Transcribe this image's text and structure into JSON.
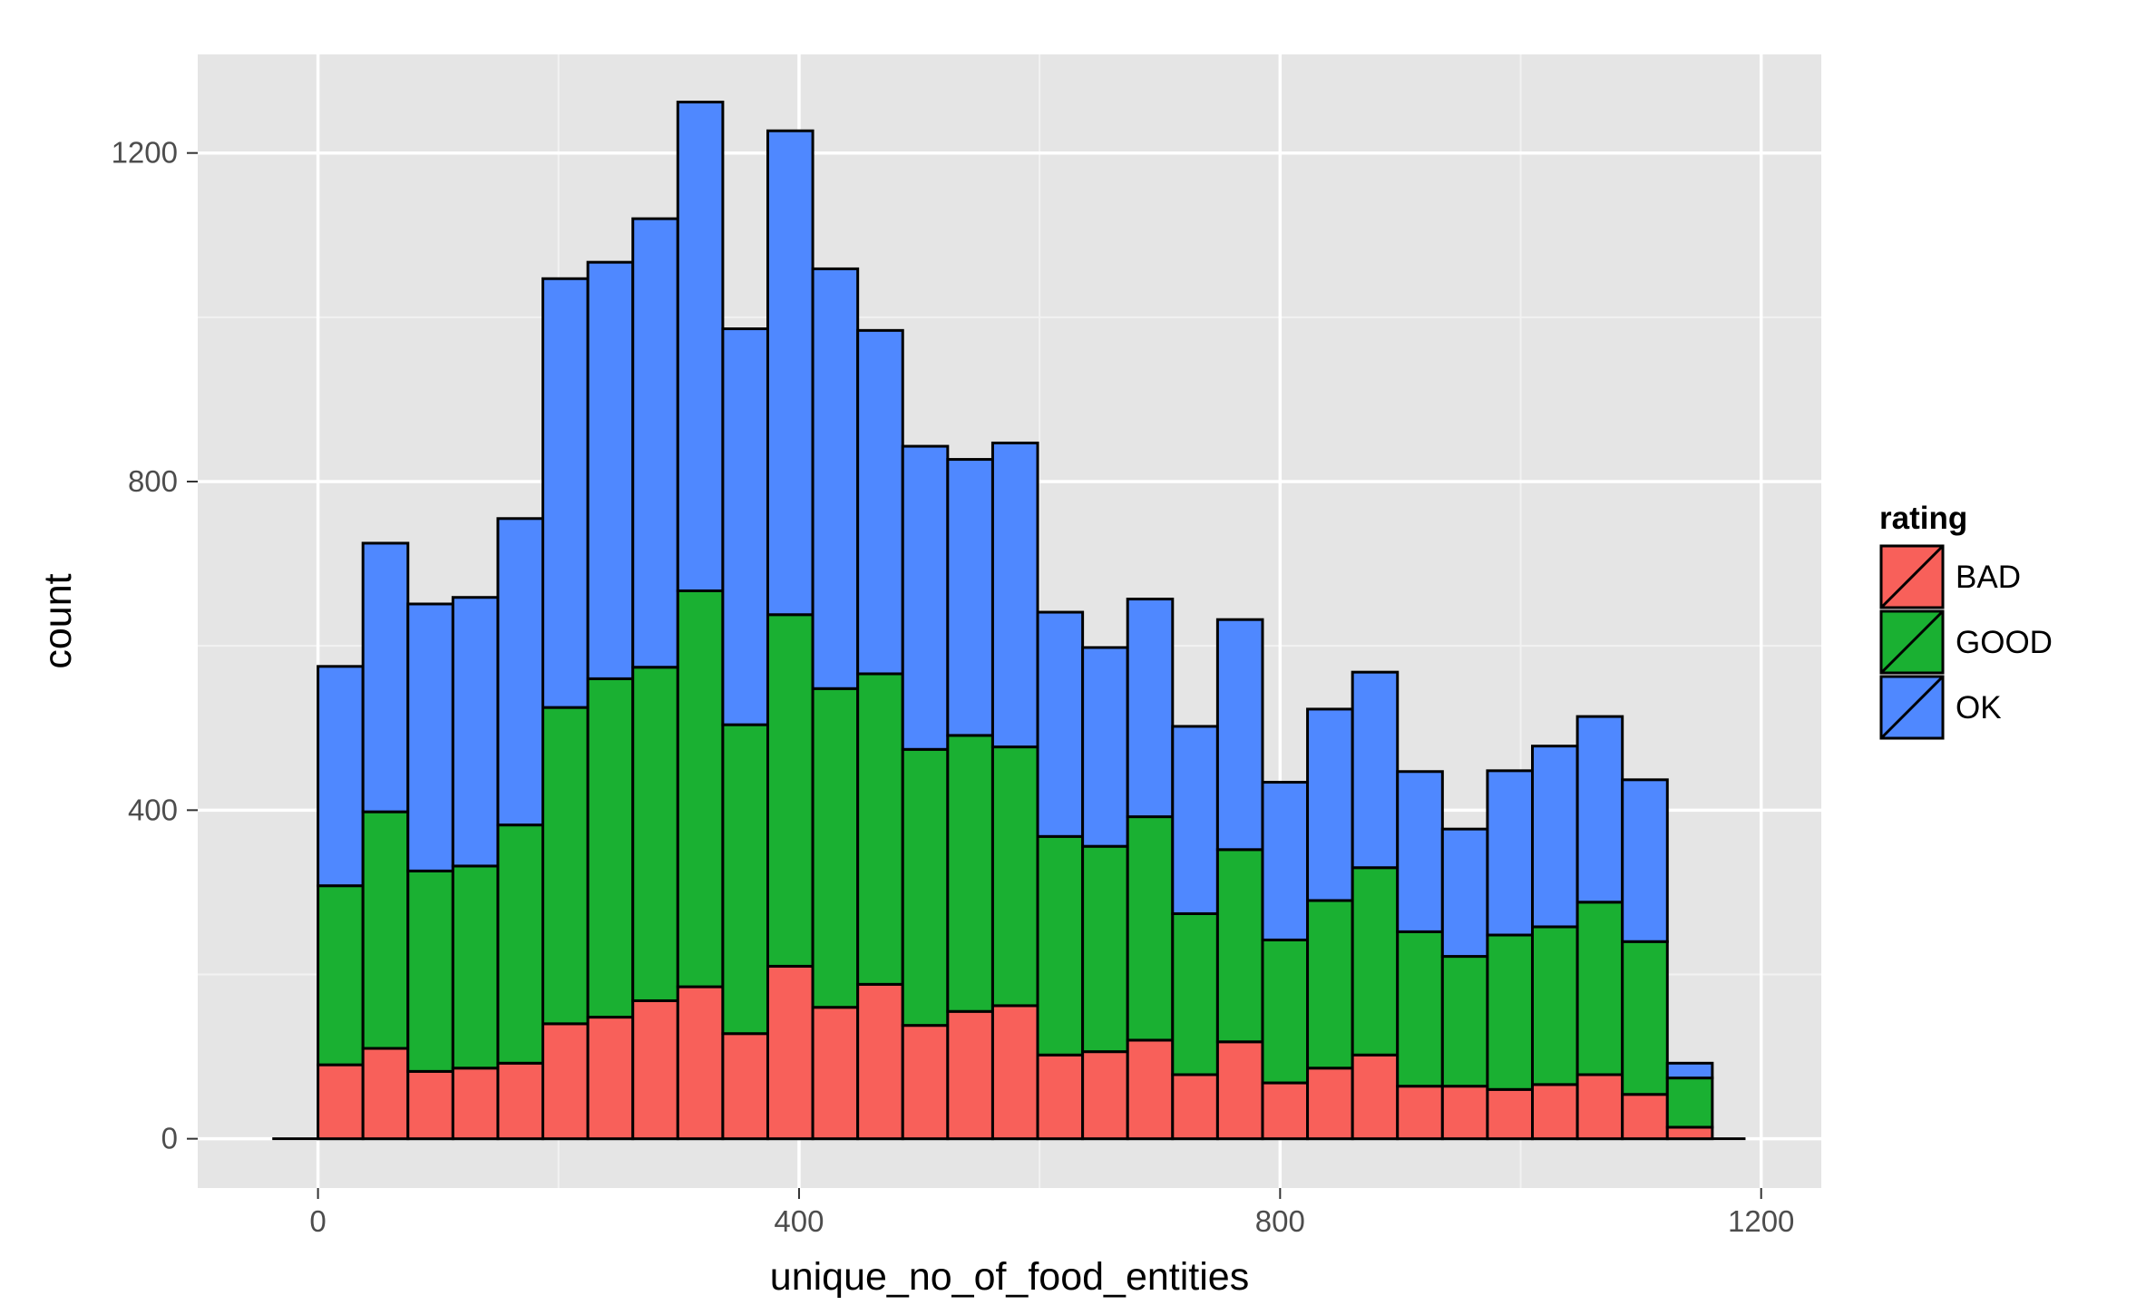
{
  "chart_data": {
    "type": "bar",
    "subtype": "stacked-histogram",
    "title": "",
    "xlabel": "unique_no_of_food_entities",
    "ylabel": "count",
    "xlim": [
      -100,
      1250
    ],
    "ylim": [
      -60,
      1320
    ],
    "x_ticks": [
      0,
      400,
      800,
      1200
    ],
    "y_ticks": [
      0,
      400,
      800,
      1200
    ],
    "x_tick_labels": [
      "0",
      "400",
      "800",
      "1200"
    ],
    "y_tick_labels": [
      "0",
      "400",
      "800",
      "1200"
    ],
    "grid": true,
    "background": "#e5e5e5",
    "legend": {
      "title": "rating",
      "placement": "right",
      "entries": [
        {
          "label": "BAD",
          "color": "#f8605a"
        },
        {
          "label": "GOOD",
          "color": "#1ab032"
        },
        {
          "label": "OK",
          "color": "#4f88ff"
        }
      ]
    },
    "bin_width": 37.4,
    "bin_starts": [
      0,
      37.4,
      74.8,
      112.2,
      149.6,
      187,
      224.4,
      261.8,
      299.2,
      336.6,
      374,
      411.4,
      448.8,
      486.2,
      523.6,
      561,
      598.4,
      635.8,
      673.2,
      710.6,
      748,
      785.4,
      822.8,
      860.2,
      897.6,
      935,
      972.4,
      1009.8,
      1047.2,
      1084.6,
      1122
    ],
    "baseline_range": [
      -38,
      1187
    ],
    "series": [
      {
        "name": "BAD",
        "color": "#f8605a",
        "values": [
          90,
          110,
          82,
          86,
          92,
          140,
          148,
          168,
          185,
          128,
          210,
          160,
          188,
          138,
          155,
          162,
          102,
          106,
          120,
          78,
          118,
          68,
          86,
          102,
          64,
          64,
          60,
          66,
          78,
          54,
          14
        ]
      },
      {
        "name": "GOOD",
        "color": "#1ab032",
        "values": [
          218,
          288,
          244,
          246,
          290,
          385,
          412,
          406,
          482,
          376,
          428,
          388,
          378,
          336,
          336,
          315,
          266,
          250,
          272,
          196,
          234,
          174,
          204,
          228,
          188,
          158,
          188,
          192,
          210,
          186,
          60
        ]
      },
      {
        "name": "OK",
        "color": "#4f88ff",
        "values": [
          267,
          327,
          325,
          327,
          373,
          522,
          507,
          546,
          595,
          482,
          589,
          511,
          418,
          369,
          336,
          370,
          273,
          242,
          265,
          228,
          280,
          192,
          233,
          238,
          195,
          155,
          200,
          220,
          226,
          197,
          18
        ]
      }
    ]
  }
}
